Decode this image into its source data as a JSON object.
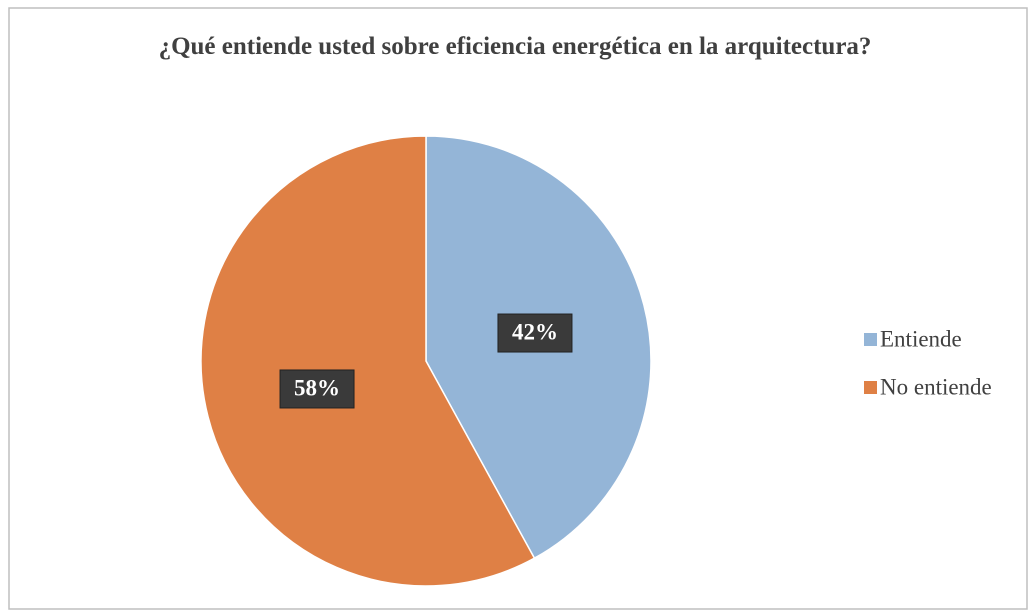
{
  "chart_data": {
    "type": "pie",
    "title": "¿Qué entiende usted sobre eficiencia energética en la arquitectura?",
    "categories": [
      "Entiende",
      "No entiende"
    ],
    "values": [
      42,
      58
    ],
    "value_labels": [
      "42%",
      "58%"
    ],
    "colors": [
      "#94b5d7",
      "#df8045"
    ],
    "legend": "right"
  }
}
